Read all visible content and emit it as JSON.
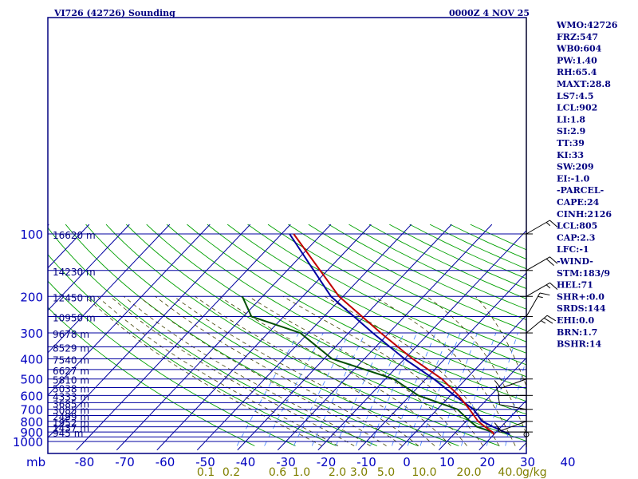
{
  "header": {
    "station": "VI726 (42726) Sounding",
    "time": "0000Z  4 NOV 25"
  },
  "chart_data": {
    "type": "line",
    "title": "VI726 (42726) Sounding",
    "pressure_levels": [
      100,
      200,
      300,
      400,
      500,
      600,
      700,
      800,
      900,
      1000
    ],
    "pressure_labels": [
      "100",
      "200",
      "300",
      "400",
      "500",
      "600",
      "700",
      "800",
      "900",
      "1000"
    ],
    "temperature_ticks": [
      -80,
      -70,
      -60,
      -50,
      -40,
      -30,
      -20,
      -10,
      0,
      10,
      20,
      30,
      40
    ],
    "temperature_labels": [
      "-80",
      "-70",
      "-60",
      "-50",
      "-40",
      "-30",
      "-20",
      "-10",
      "0",
      "10",
      "20",
      "30",
      "40"
    ],
    "pressure_unit": "mb",
    "mixing_ratio_unit": "g/kg",
    "mixing_ratio_labels": [
      "0.1",
      "0.2",
      "0.6",
      "1.0",
      "2.0",
      "3.0",
      "5.0",
      "10.0",
      "20.0",
      "40.0"
    ],
    "height_labels": [
      {
        "p": 100,
        "label": "16620 m"
      },
      {
        "p": 150,
        "label": "14230 m"
      },
      {
        "p": 200,
        "label": "12450 m"
      },
      {
        "p": 250,
        "label": "10950 m"
      },
      {
        "p": 300,
        "label": "9678 m"
      },
      {
        "p": 350,
        "label": "8529 m"
      },
      {
        "p": 400,
        "label": "7540 m"
      },
      {
        "p": 450,
        "label": "6627 m"
      },
      {
        "p": 500,
        "label": "5810 m"
      },
      {
        "p": 550,
        "label": "5038 m"
      },
      {
        "p": 600,
        "label": "4333 m"
      },
      {
        "p": 650,
        "label": "3685 m"
      },
      {
        "p": 700,
        "label": "3085 m"
      },
      {
        "p": 750,
        "label": "2499 m"
      },
      {
        "p": 800,
        "label": "1952 m"
      },
      {
        "p": 850,
        "label": "1437 m"
      },
      {
        "p": 900,
        "label": "945 m"
      }
    ],
    "series": [
      {
        "name": "",
        "kind": "temperature",
        "color": "#0000a0",
        "points": [
          [
            925,
            24
          ],
          [
            900,
            22
          ],
          [
            850,
            18
          ],
          [
            800,
            14
          ],
          [
            700,
            9
          ],
          [
            600,
            1
          ],
          [
            500,
            -8
          ],
          [
            400,
            -20
          ],
          [
            300,
            -34
          ],
          [
            200,
            -53
          ],
          [
            100,
            -78
          ]
        ]
      },
      {
        "name": "",
        "kind": "dewpoint",
        "color": "#005000",
        "points": [
          [
            925,
            20
          ],
          [
            900,
            19
          ],
          [
            850,
            14
          ],
          [
            800,
            11
          ],
          [
            700,
            5
          ],
          [
            600,
            -8
          ],
          [
            500,
            -18
          ],
          [
            400,
            -38
          ],
          [
            300,
            -52
          ],
          [
            250,
            -68
          ],
          [
            200,
            -75
          ]
        ]
      },
      {
        "name": "",
        "kind": "parcel",
        "color": "#c00000",
        "points": [
          [
            925,
            20
          ],
          [
            900,
            19
          ],
          [
            850,
            16
          ],
          [
            800,
            13
          ],
          [
            700,
            8
          ],
          [
            600,
            2
          ],
          [
            500,
            -6
          ],
          [
            400,
            -18
          ],
          [
            300,
            -32
          ],
          [
            200,
            -51
          ],
          [
            100,
            -77
          ]
        ]
      }
    ],
    "winds": [
      {
        "p": 100,
        "dir": 60,
        "spd": 15
      },
      {
        "p": 150,
        "dir": 60,
        "spd": 20
      },
      {
        "p": 200,
        "dir": 60,
        "spd": 15
      },
      {
        "p": 250,
        "dir": 30,
        "spd": 15
      },
      {
        "p": 300,
        "dir": 50,
        "spd": 25
      },
      {
        "p": 500,
        "dir": 250,
        "spd": 10
      },
      {
        "p": 600,
        "dir": 270,
        "spd": 10
      },
      {
        "p": 700,
        "dir": 280,
        "spd": 10
      },
      {
        "p": 800,
        "dir": 250,
        "spd": 10
      },
      {
        "p": 900,
        "dir": 270,
        "spd": 5
      }
    ],
    "grid": true
  },
  "indices": [
    "WMO:42726",
    "FRZ:547",
    "WB0:604",
    "PW:1.40",
    "RH:65.4",
    "MAXT:28.8",
    "LS7:4.5",
    "LCL:902",
    "LI:1.8",
    "SI:2.9",
    "TT:39",
    "KI:33",
    "SW:209",
    "EI:-1.0",
    "-PARCEL-",
    "CAPE:24",
    "CINH:2126",
    "LCL:805",
    "CAP:2.3",
    "LFC:-1",
    "-WIND-",
    "STM:183/9",
    "HEL:71",
    "SHR+:0.0",
    "SRDS:144",
    "EHI:0.0",
    "BRN:1.7",
    "BSHR:14"
  ],
  "colors": {
    "frame": "#000080",
    "isobar": "#0000a0",
    "isotherm": "#0000a0",
    "dry_adiabat": "#00a000",
    "moist_adiabat": "#404000",
    "mixing_ratio": "#4080ff"
  }
}
